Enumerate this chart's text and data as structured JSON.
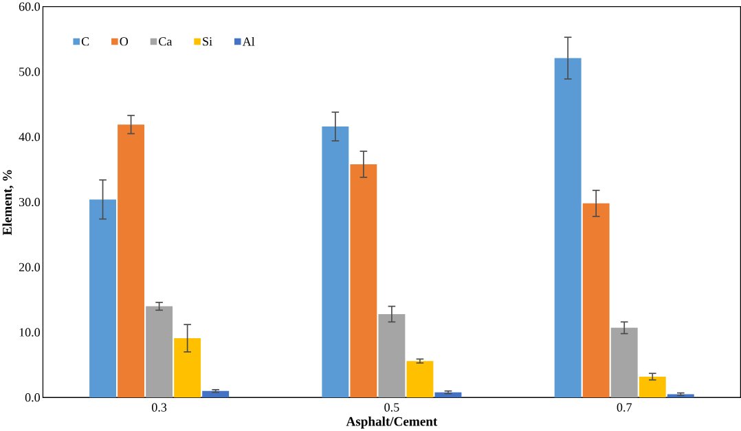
{
  "chart_data": {
    "type": "bar",
    "xlabel": "Asphalt/Cement",
    "ylabel": "Element, %",
    "categories": [
      "0.3",
      "0.5",
      "0.7"
    ],
    "series": [
      {
        "name": "C",
        "color": "#5b9bd5",
        "values": [
          30.4,
          41.6,
          52.1
        ],
        "errors": [
          3.0,
          2.2,
          3.2
        ]
      },
      {
        "name": "O",
        "color": "#ed7d31",
        "values": [
          41.9,
          35.8,
          29.8
        ],
        "errors": [
          1.4,
          2.0,
          2.0
        ]
      },
      {
        "name": "Ca",
        "color": "#a5a5a5",
        "values": [
          14.0,
          12.8,
          10.7
        ],
        "errors": [
          0.6,
          1.2,
          0.9
        ]
      },
      {
        "name": "Si",
        "color": "#ffc000",
        "values": [
          9.1,
          5.6,
          3.2
        ],
        "errors": [
          2.1,
          0.3,
          0.5
        ]
      },
      {
        "name": "Al",
        "color": "#4472c4",
        "values": [
          1.0,
          0.8,
          0.5
        ],
        "errors": [
          0.2,
          0.2,
          0.2
        ]
      }
    ],
    "ylim": [
      0,
      60
    ],
    "yticks": [
      {
        "value": 0,
        "label": "0.0"
      },
      {
        "value": 10,
        "label": "10.0"
      },
      {
        "value": 20,
        "label": "20.0"
      },
      {
        "value": 30,
        "label": "30.0"
      },
      {
        "value": 40,
        "label": "40.0"
      },
      {
        "value": 50,
        "label": "50.0"
      },
      {
        "value": 60,
        "label": "60.0"
      }
    ],
    "legend": "top left"
  }
}
